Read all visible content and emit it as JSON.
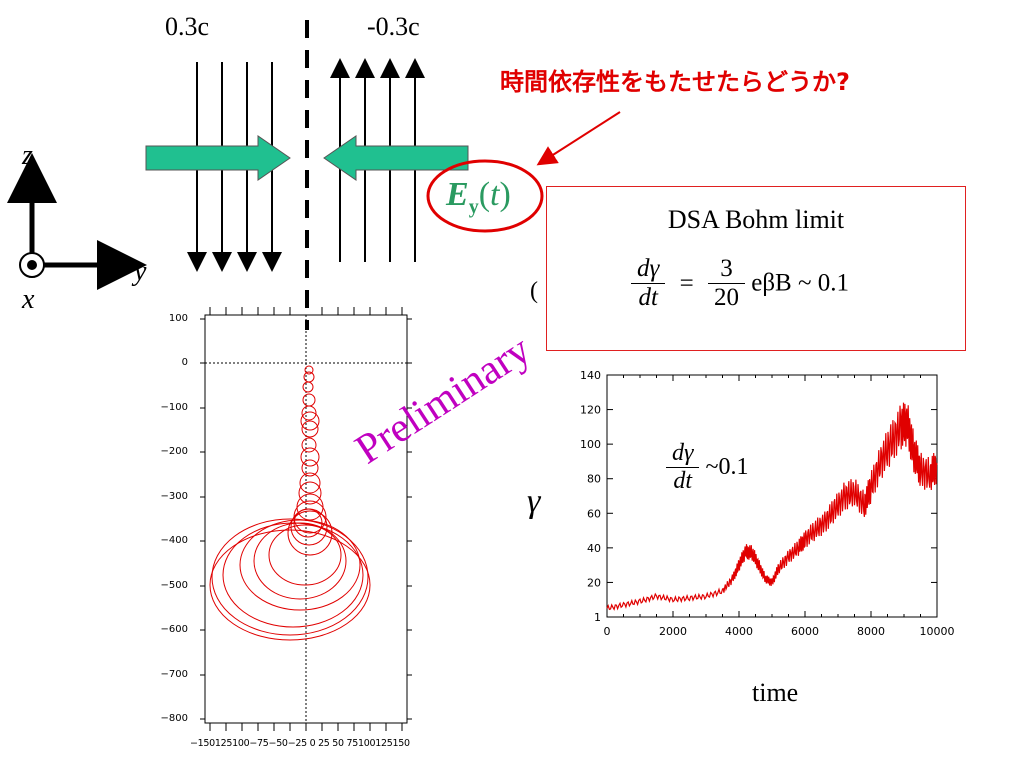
{
  "velocity_left": "0.3c",
  "velocity_right": "-0.3c",
  "question_text": "時間依存性をもたせたらどうか?",
  "ey": {
    "E": "E",
    "sub": "y",
    "open": "(",
    "t": "t",
    "close": ")"
  },
  "axes": {
    "z": "z",
    "y": "y",
    "x": "x"
  },
  "hidden_paren": "(",
  "dsa": {
    "title": "DSA Bohm limit",
    "num": "dγ",
    "den": "dt",
    "eq": "=",
    "coef_num": "3",
    "coef_den": "20",
    "tail": "eβB ~ 0.1"
  },
  "preliminary": "Preliminary",
  "gamma_symbol": "γ",
  "rate": {
    "num": "dγ",
    "den": "dt",
    "tail": "~0.1"
  },
  "time_label": "time",
  "left_plot": {
    "y_ticks": [
      "100",
      "0",
      "−100",
      "−200",
      "−300",
      "−400",
      "−500",
      "−600",
      "−700",
      "−800"
    ],
    "x_ticks": [
      "−150",
      "125",
      "100",
      "−75",
      "−50",
      "−25",
      "0",
      "25",
      "50",
      "75",
      "100",
      "125",
      "150"
    ]
  },
  "chart_data": {
    "type": "line",
    "title": "",
    "xlabel": "time",
    "ylabel": "γ",
    "xlim": [
      0,
      10000
    ],
    "ylim": [
      0,
      140
    ],
    "x_ticks": [
      "0",
      "2000",
      "4000",
      "6000",
      "8000",
      "10000"
    ],
    "y_ticks": [
      "1",
      "20",
      "40",
      "60",
      "80",
      "100",
      "120",
      "140"
    ],
    "series": [
      {
        "color": "#e00000",
        "x": [
          0,
          500,
          1000,
          1500,
          2000,
          2500,
          3000,
          3500,
          3800,
          4000,
          4200,
          4400,
          4600,
          4800,
          5000,
          5200,
          5500,
          5800,
          6000,
          6300,
          6600,
          6900,
          7200,
          7500,
          7800,
          8000,
          8300,
          8600,
          8900,
          9100,
          9300,
          9500,
          9800,
          10000
        ],
        "y": [
          5,
          7,
          9,
          12,
          10,
          11,
          12,
          15,
          22,
          30,
          38,
          37,
          30,
          22,
          20,
          28,
          35,
          40,
          45,
          50,
          55,
          62,
          70,
          72,
          65,
          75,
          90,
          100,
          110,
          112,
          95,
          85,
          82,
          88
        ]
      }
    ]
  },
  "colors": {
    "accent": "#e00000",
    "arrow_fill": "#20c090",
    "magenta": "#c000c0"
  }
}
